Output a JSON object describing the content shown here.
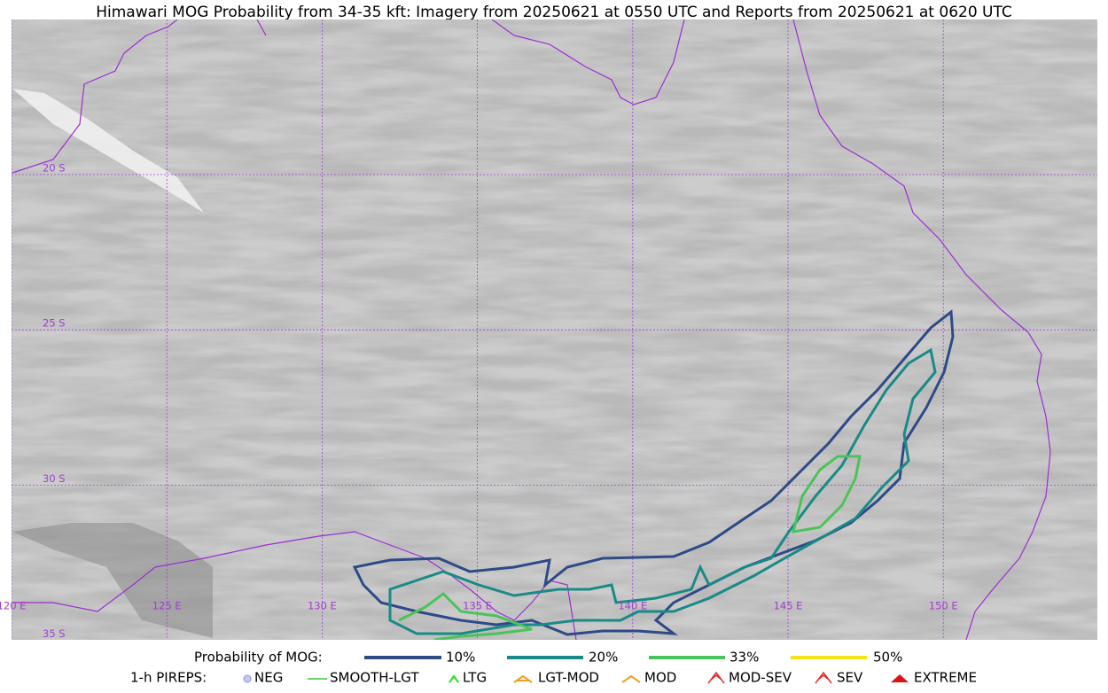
{
  "title": "Himawari MOG Probability from 34-35 kft: Imagery from 20250621 at 0550 UTC and Reports from 20250621 at 0620 UTC",
  "lat_labels": [
    "20 S",
    "25 S",
    "30 S",
    "35 S"
  ],
  "lon_labels": [
    "120 E",
    "125 E",
    "130 E",
    "135 E",
    "140 E",
    "145 E",
    "150 E"
  ],
  "legend": {
    "probability": {
      "title": "Probability of MOG:",
      "items": [
        "10%",
        "20%",
        "33%",
        "50%"
      ]
    },
    "pireps": {
      "title": "1-h PIREPS:",
      "items": [
        "NEG",
        "SMOOTH-LGT",
        "LTG",
        "LGT-MOD",
        "MOD",
        "MOD-SEV",
        "SEV",
        "EXTREME"
      ]
    }
  }
}
